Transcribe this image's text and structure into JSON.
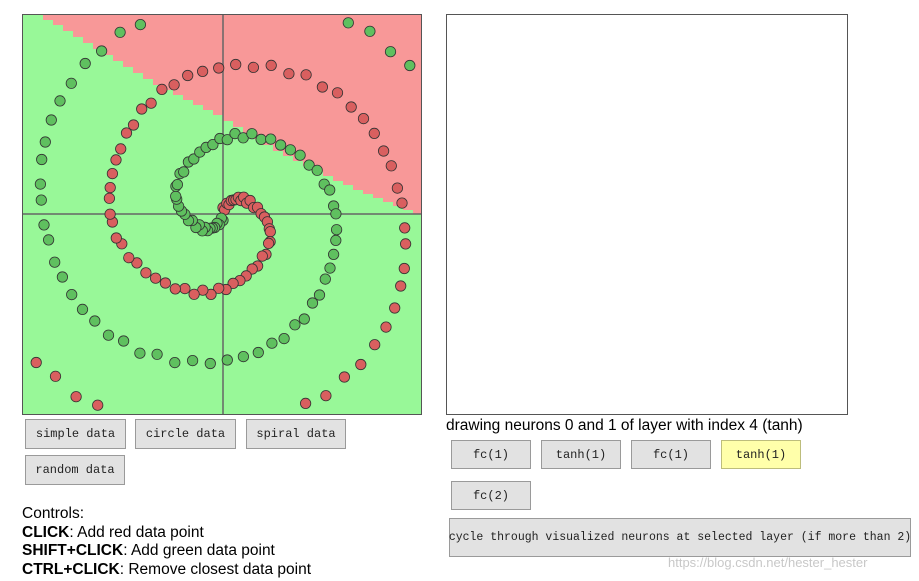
{
  "colors": {
    "green_region": "#98f898",
    "red_region": "#f89898",
    "red_point": "#d95f5f",
    "green_point": "#5fc05f",
    "axis": "#666666",
    "highlight_button": "#ffffaa"
  },
  "data_buttons": [
    {
      "label": "simple data"
    },
    {
      "label": "circle data"
    },
    {
      "label": "spiral data"
    },
    {
      "label": "random data"
    }
  ],
  "layer_message": "drawing neurons 0 and 1 of layer with index 4 (tanh)",
  "layer_buttons": [
    {
      "label": "fc(1)",
      "selected": false
    },
    {
      "label": "tanh(1)",
      "selected": false
    },
    {
      "label": "fc(1)",
      "selected": false
    },
    {
      "label": "tanh(1)",
      "selected": true
    },
    {
      "label": "fc(2)",
      "selected": false
    }
  ],
  "cycle_button": "cycle through visualized neurons at selected layer (if more than 2)",
  "controls": {
    "heading": "Controls:",
    "rows": [
      {
        "key": "CLICK",
        "desc": ": Add red data point"
      },
      {
        "key": "SHIFT+CLICK",
        "desc": ": Add green data point"
      },
      {
        "key": "CTRL+CLICK",
        "desc": ": Remove closest data point"
      }
    ]
  },
  "watermark": "https://blog.csdn.net/hester_hester",
  "dataset": {
    "name": "spiral",
    "red_points": [
      [
        -1.0,
        2.0
      ],
      [
        0.8,
        1.3
      ]
    ],
    "green_points": [
      [
        0.1,
        1.9
      ],
      [
        -0.1,
        1.0
      ]
    ]
  }
}
